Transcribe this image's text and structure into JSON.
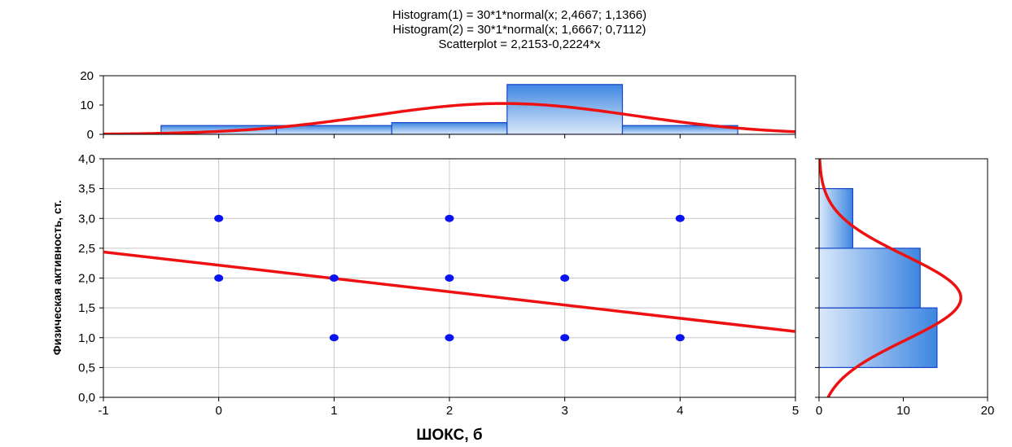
{
  "chart_data": {
    "type": "scatter",
    "title_lines": [
      "Histogram(1) = 30*1*normal(x; 2,4667; 1,1366)",
      "Histogram(2) = 30*1*normal(x; 1,6667; 0,7112)",
      "Scatterplot = 2,2153-0,2224*x"
    ],
    "xlabel": "ШОКС, б",
    "ylabel": "Физическая активность, ст.",
    "xlim": [
      -1,
      5
    ],
    "ylim": [
      0,
      4
    ],
    "x_ticks": [
      "-1",
      "0",
      "1",
      "2",
      "3",
      "4",
      "5"
    ],
    "y_ticks": [
      "0,0",
      "0,5",
      "1,0",
      "1,5",
      "2,0",
      "2,5",
      "3,0",
      "3,5",
      "4,0"
    ],
    "grid": true,
    "points": [
      {
        "x": 0,
        "y": 3
      },
      {
        "x": 2,
        "y": 3
      },
      {
        "x": 4,
        "y": 3
      },
      {
        "x": 0,
        "y": 2
      },
      {
        "x": 1,
        "y": 2
      },
      {
        "x": 2,
        "y": 2
      },
      {
        "x": 3,
        "y": 2
      },
      {
        "x": 1,
        "y": 1
      },
      {
        "x": 2,
        "y": 1
      },
      {
        "x": 3,
        "y": 1
      },
      {
        "x": 4,
        "y": 1
      }
    ],
    "regression": {
      "intercept": 2.2153,
      "slope": -0.2224
    },
    "top_histogram": {
      "ylim": [
        0,
        20
      ],
      "y_ticks": [
        "0",
        "10",
        "20"
      ],
      "bins": [
        {
          "from": -0.5,
          "to": 0.5,
          "count": 3
        },
        {
          "from": 0.5,
          "to": 1.5,
          "count": 3
        },
        {
          "from": 1.5,
          "to": 2.5,
          "count": 4
        },
        {
          "from": 2.5,
          "to": 3.5,
          "count": 17
        },
        {
          "from": 3.5,
          "to": 4.5,
          "count": 3
        }
      ],
      "normal": {
        "n": 30,
        "width": 1,
        "mean": 2.4667,
        "sd": 1.1366
      }
    },
    "right_histogram": {
      "xlim": [
        0,
        20
      ],
      "x_ticks": [
        "0",
        "10",
        "20"
      ],
      "bins": [
        {
          "from": 0.5,
          "to": 1.5,
          "count": 14
        },
        {
          "from": 1.5,
          "to": 2.5,
          "count": 12
        },
        {
          "from": 2.5,
          "to": 3.5,
          "count": 4
        }
      ],
      "normal": {
        "n": 30,
        "width": 1,
        "mean": 1.6667,
        "sd": 0.7112
      }
    },
    "colors": {
      "points": "#0a14f0",
      "fit_line": "#ee1111",
      "bar_light": "#dbe9fb",
      "bar_dark": "#3d86e0",
      "bar_stroke": "#1747c8",
      "grid": "#c8c8c8"
    }
  }
}
